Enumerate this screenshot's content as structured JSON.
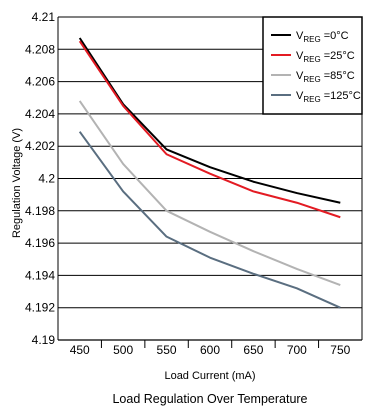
{
  "chart_data": {
    "type": "line",
    "title": "",
    "caption": "Load Regulation Over Temperature",
    "xlabel": "Load Current (mA)",
    "ylabel": "Regulation Voltage (V)",
    "x": [
      450,
      500,
      550,
      600,
      650,
      700,
      750
    ],
    "x_tick_labels": [
      "450",
      "500",
      "550",
      "600",
      "650",
      "700",
      "750"
    ],
    "y_tick_labels": [
      "4.21",
      "4.208",
      "4.206",
      "4.204",
      "4.202",
      "4.2",
      "4.198",
      "4.196",
      "4.194",
      "4.192",
      "4.19"
    ],
    "ylim": [
      4.19,
      4.21
    ],
    "xlim": [
      425,
      775
    ],
    "grid": "horizontal",
    "legend_position": "top-right",
    "series": [
      {
        "name": "V_REG = 0°C",
        "legend_main": "V",
        "legend_sub": "REG",
        "legend_rest": " =0°C",
        "color": "#000000",
        "values": [
          4.2087,
          4.2046,
          4.2018,
          4.2007,
          4.1998,
          4.1991,
          4.1985
        ]
      },
      {
        "name": "V_REG = 25°C",
        "legend_main": "V",
        "legend_sub": "REG",
        "legend_rest": " =25°C",
        "color": "#e31b23",
        "values": [
          4.2085,
          4.2045,
          4.2015,
          4.2003,
          4.1992,
          4.1985,
          4.1976
        ]
      },
      {
        "name": "V_REG = 85°C",
        "legend_main": "V",
        "legend_sub": "REG",
        "legend_rest": " =85°C",
        "color": "#b3b3b3",
        "values": [
          4.2048,
          4.2009,
          4.198,
          4.1967,
          4.1955,
          4.1944,
          4.1934
        ]
      },
      {
        "name": "V_REG = 125°C",
        "legend_main": "V",
        "legend_sub": "REG",
        "legend_rest": " =125°C",
        "color": "#5a6e80",
        "values": [
          4.2029,
          4.1992,
          4.1964,
          4.1951,
          4.1941,
          4.1932,
          4.192
        ]
      }
    ]
  }
}
